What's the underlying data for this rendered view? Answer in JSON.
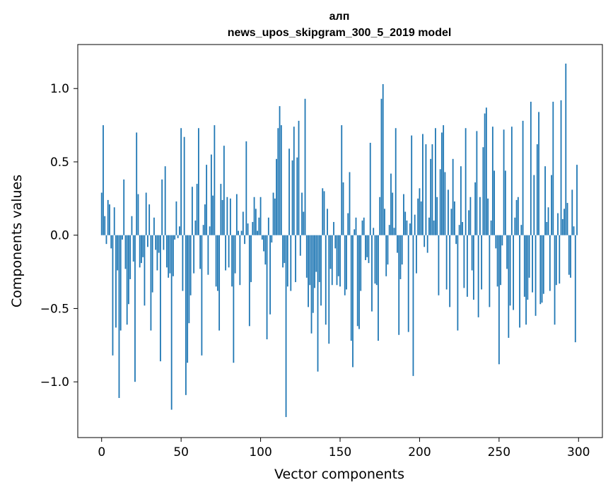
{
  "chart_data": {
    "type": "bar",
    "title": "алп",
    "subtitle": "news_upos_skipgram_300_5_2019 model",
    "xlabel": "Vector components",
    "ylabel": "Components values",
    "xlim": [
      -15,
      315
    ],
    "ylim": [
      -1.38,
      1.3
    ],
    "xticks": [
      0,
      50,
      100,
      150,
      200,
      250,
      300
    ],
    "xtick_labels": [
      "0",
      "50",
      "100",
      "150",
      "200",
      "250",
      "300"
    ],
    "yticks": [
      -1.0,
      -0.5,
      0.0,
      0.5,
      1.0
    ],
    "ytick_labels": [
      "−1.0",
      "−0.5",
      "0.0",
      "0.5",
      "1.0"
    ],
    "bar_color": "#1f77b4",
    "grid": false,
    "values": [
      0.29,
      0.75,
      0.13,
      -0.06,
      0.24,
      0.21,
      -0.09,
      -0.82,
      0.19,
      -0.63,
      -0.24,
      -1.11,
      -0.65,
      -0.03,
      0.38,
      -0.23,
      -0.61,
      -0.47,
      -0.3,
      0.13,
      -0.18,
      -1.0,
      0.7,
      0.28,
      -0.22,
      -0.19,
      -0.15,
      -0.48,
      0.29,
      -0.08,
      0.21,
      -0.65,
      -0.39,
      0.12,
      -0.1,
      -0.24,
      -0.12,
      -0.86,
      0.38,
      -0.1,
      0.47,
      -0.22,
      -0.29,
      -0.26,
      -1.19,
      -0.28,
      -0.03,
      0.23,
      -0.02,
      0.06,
      0.73,
      -0.38,
      0.67,
      -1.09,
      -0.87,
      -0.6,
      -0.41,
      0.33,
      -0.26,
      0.1,
      0.35,
      0.73,
      -0.23,
      -0.82,
      0.07,
      0.21,
      0.48,
      -0.27,
      0.06,
      0.55,
      0.27,
      0.75,
      -0.35,
      -0.38,
      -0.65,
      0.35,
      0.24,
      0.61,
      -0.24,
      0.26,
      -0.22,
      0.25,
      -0.35,
      -0.87,
      -0.26,
      0.28,
      0.03,
      -0.34,
      0.03,
      0.16,
      -0.06,
      0.64,
      0.08,
      -0.62,
      -0.32,
      0.09,
      0.26,
      0.18,
      0.03,
      0.12,
      0.26,
      -0.03,
      -0.11,
      -0.2,
      -0.71,
      0.12,
      -0.54,
      -0.05,
      0.29,
      0.25,
      0.52,
      0.73,
      0.88,
      0.75,
      -0.22,
      -0.19,
      -1.24,
      -0.35,
      0.59,
      -0.38,
      0.51,
      0.74,
      -0.32,
      0.53,
      0.78,
      -0.14,
      0.29,
      0.16,
      0.93,
      -0.29,
      -0.49,
      -0.34,
      -0.67,
      -0.53,
      -0.36,
      -0.25,
      -0.93,
      -0.32,
      -0.48,
      0.32,
      0.3,
      -0.61,
      0.18,
      -0.74,
      -0.23,
      -0.34,
      0.09,
      -0.09,
      -0.34,
      -0.28,
      -0.35,
      0.75,
      0.36,
      -0.41,
      -0.37,
      0.15,
      0.43,
      -0.72,
      -0.9,
      0.04,
      0.12,
      -0.62,
      -0.64,
      -0.38,
      0.1,
      0.12,
      -0.17,
      -0.15,
      -0.19,
      0.63,
      -0.52,
      0.05,
      -0.33,
      -0.34,
      -0.72,
      0.26,
      0.93,
      1.03,
      0.18,
      -0.28,
      -0.2,
      0.07,
      0.42,
      0.29,
      0.05,
      0.73,
      -0.12,
      -0.68,
      -0.3,
      -0.2,
      0.28,
      0.16,
      0.1,
      -0.66,
      0.08,
      0.68,
      -0.96,
      0.14,
      -0.26,
      0.25,
      0.32,
      0.23,
      0.69,
      -0.08,
      0.62,
      -0.12,
      0.12,
      0.52,
      0.62,
      0.1,
      0.73,
      0.26,
      -0.41,
      0.45,
      0.7,
      0.75,
      0.43,
      -0.37,
      0.31,
      -0.49,
      0.18,
      0.52,
      0.23,
      -0.06,
      -0.65,
      0.07,
      0.47,
      0.09,
      -0.36,
      0.73,
      -0.42,
      0.17,
      0.26,
      -0.24,
      -0.44,
      0.36,
      0.71,
      -0.56,
      0.26,
      -0.37,
      0.6,
      0.83,
      0.87,
      0.25,
      -0.49,
      0.1,
      0.74,
      0.44,
      -0.09,
      -0.35,
      -0.88,
      -0.34,
      -0.07,
      0.72,
      0.44,
      -0.23,
      -0.7,
      -0.48,
      0.74,
      -0.51,
      0.12,
      0.24,
      0.26,
      -0.63,
      0.07,
      0.78,
      -0.42,
      -0.61,
      -0.44,
      -0.29,
      0.91,
      -0.39,
      0.41,
      -0.55,
      0.62,
      0.84,
      -0.47,
      -0.46,
      -0.4,
      0.47,
      0.09,
      0.19,
      -0.38,
      0.41,
      0.91,
      -0.61,
      -0.34,
      0.15,
      -0.33,
      0.92,
      0.11,
      0.18,
      1.17,
      0.22,
      -0.27,
      -0.29,
      0.31,
      0.06,
      -0.73,
      0.48
    ]
  }
}
